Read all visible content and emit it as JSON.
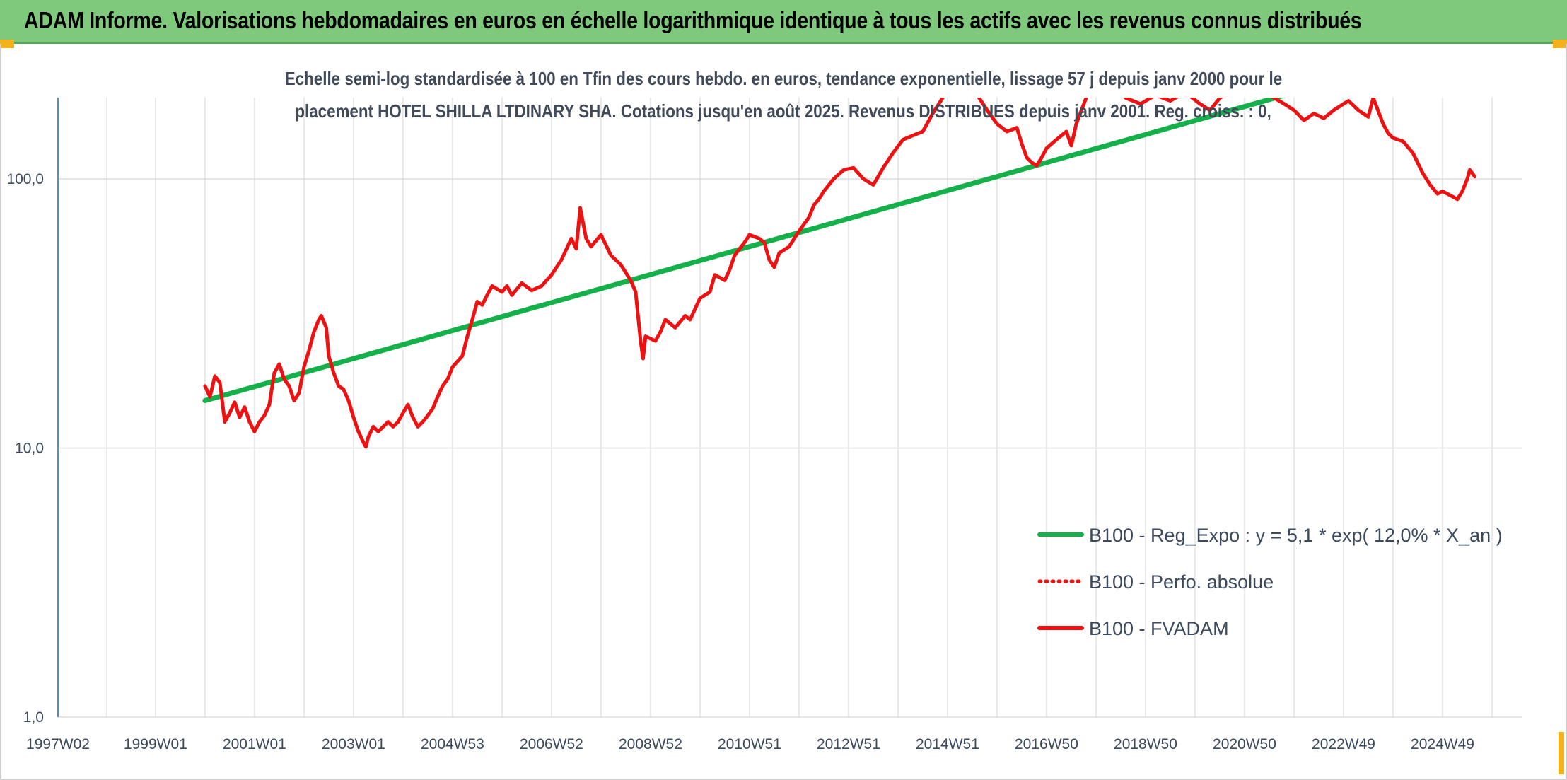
{
  "header": {
    "title": "ADAM Informe. Valorisations hebdomadaires en euros en échelle logarithmique identique à tous les actifs avec les revenus connus distribués"
  },
  "chart_data": {
    "type": "line",
    "title_line1": "Echelle semi-log standardisée à 100 en Tfin des cours hebdo. en euros, tendance exponentielle, lissage 57 j depuis janv 2000 pour le",
    "title_line2": "placement HOTEL SHILLA LTDINARY SHA. Cotations jusqu'en août 2025. Revenus DISTRIBUES depuis janv 2001. Reg. croiss. : 0,",
    "y_scale": "log",
    "ylim": [
      1,
      200
    ],
    "y_ticks": [
      {
        "value": 100,
        "label": "100,0"
      },
      {
        "value": 10,
        "label": "10,0"
      },
      {
        "value": 1,
        "label": "1,0"
      }
    ],
    "x_range": [
      1997.03,
      2026.6
    ],
    "x_ticks": [
      {
        "value": 1997.03,
        "label": "1997W02"
      },
      {
        "value": 1999.0,
        "label": "1999W01"
      },
      {
        "value": 2001.0,
        "label": "2001W01"
      },
      {
        "value": 2003.0,
        "label": "2003W01"
      },
      {
        "value": 2005.0,
        "label": "2004W53"
      },
      {
        "value": 2007.0,
        "label": "2006W52"
      },
      {
        "value": 2009.0,
        "label": "2008W52"
      },
      {
        "value": 2011.0,
        "label": "2010W51"
      },
      {
        "value": 2013.0,
        "label": "2012W51"
      },
      {
        "value": 2015.0,
        "label": "2014W51"
      },
      {
        "value": 2017.0,
        "label": "2016W50"
      },
      {
        "value": 2019.0,
        "label": "2018W50"
      },
      {
        "value": 2021.0,
        "label": "2020W50"
      },
      {
        "value": 2023.0,
        "label": "2022W49"
      },
      {
        "value": 2025.0,
        "label": "2024W49"
      }
    ],
    "grid": true,
    "legend_position": "bottom-right",
    "series": [
      {
        "name": "B100 - Reg_Expo : y = 5,1 * exp( 12,0% *  X_an )",
        "color": "#14b04a",
        "style": "solid",
        "points": [
          [
            2000.0,
            15.0
          ],
          [
            2025.0,
            300.0
          ]
        ]
      },
      {
        "name": "B100 - Perfo. absolue",
        "color": "#ee1111",
        "style": "dotted",
        "points": []
      },
      {
        "name": "B100 - FVADAM",
        "color": "#ee1111",
        "style": "solid",
        "points": [
          [
            2000.0,
            17.0
          ],
          [
            2000.1,
            15.5
          ],
          [
            2000.2,
            18.5
          ],
          [
            2000.3,
            17.5
          ],
          [
            2000.4,
            12.5
          ],
          [
            2000.5,
            13.5
          ],
          [
            2000.6,
            14.8
          ],
          [
            2000.7,
            13.0
          ],
          [
            2000.8,
            14.2
          ],
          [
            2000.9,
            12.5
          ],
          [
            2001.0,
            11.5
          ],
          [
            2001.1,
            12.5
          ],
          [
            2001.2,
            13.2
          ],
          [
            2001.3,
            14.5
          ],
          [
            2001.4,
            19.0
          ],
          [
            2001.5,
            20.5
          ],
          [
            2001.6,
            18.0
          ],
          [
            2001.7,
            17.0
          ],
          [
            2001.8,
            15.0
          ],
          [
            2001.9,
            16.0
          ],
          [
            2002.0,
            20.0
          ],
          [
            2002.1,
            23.0
          ],
          [
            2002.2,
            27.0
          ],
          [
            2002.3,
            30.0
          ],
          [
            2002.35,
            31.0
          ],
          [
            2002.45,
            28.0
          ],
          [
            2002.5,
            22.0
          ],
          [
            2002.6,
            19.0
          ],
          [
            2002.7,
            17.0
          ],
          [
            2002.8,
            16.5
          ],
          [
            2002.9,
            15.0
          ],
          [
            2003.0,
            13.0
          ],
          [
            2003.1,
            11.5
          ],
          [
            2003.2,
            10.5
          ],
          [
            2003.25,
            10.1
          ],
          [
            2003.3,
            11.0
          ],
          [
            2003.4,
            12.0
          ],
          [
            2003.5,
            11.5
          ],
          [
            2003.6,
            12.0
          ],
          [
            2003.7,
            12.5
          ],
          [
            2003.8,
            12.0
          ],
          [
            2003.9,
            12.5
          ],
          [
            2004.0,
            13.5
          ],
          [
            2004.1,
            14.5
          ],
          [
            2004.2,
            13.0
          ],
          [
            2004.3,
            12.0
          ],
          [
            2004.4,
            12.5
          ],
          [
            2004.5,
            13.2
          ],
          [
            2004.6,
            14.0
          ],
          [
            2004.7,
            15.5
          ],
          [
            2004.8,
            17.0
          ],
          [
            2004.9,
            18.0
          ],
          [
            2005.0,
            20.0
          ],
          [
            2005.2,
            22.0
          ],
          [
            2005.3,
            26.0
          ],
          [
            2005.4,
            30.0
          ],
          [
            2005.5,
            35.0
          ],
          [
            2005.6,
            34.0
          ],
          [
            2005.7,
            37.0
          ],
          [
            2005.8,
            40.0
          ],
          [
            2006.0,
            38.0
          ],
          [
            2006.1,
            40.0
          ],
          [
            2006.2,
            37.0
          ],
          [
            2006.4,
            41.0
          ],
          [
            2006.6,
            38.5
          ],
          [
            2006.8,
            40.0
          ],
          [
            2007.0,
            44.0
          ],
          [
            2007.2,
            50.0
          ],
          [
            2007.4,
            60.0
          ],
          [
            2007.5,
            55.0
          ],
          [
            2007.58,
            78.0
          ],
          [
            2007.7,
            60.0
          ],
          [
            2007.8,
            56.0
          ],
          [
            2008.0,
            62.0
          ],
          [
            2008.2,
            52.0
          ],
          [
            2008.4,
            48.0
          ],
          [
            2008.6,
            42.0
          ],
          [
            2008.7,
            38.0
          ],
          [
            2008.8,
            25.0
          ],
          [
            2008.85,
            21.5
          ],
          [
            2008.9,
            26.0
          ],
          [
            2009.1,
            25.0
          ],
          [
            2009.2,
            27.0
          ],
          [
            2009.3,
            30.0
          ],
          [
            2009.5,
            28.0
          ],
          [
            2009.7,
            31.0
          ],
          [
            2009.8,
            30.0
          ],
          [
            2010.0,
            36.0
          ],
          [
            2010.2,
            38.0
          ],
          [
            2010.3,
            44.0
          ],
          [
            2010.5,
            42.0
          ],
          [
            2010.6,
            46.0
          ],
          [
            2010.7,
            52.0
          ],
          [
            2010.8,
            55.0
          ],
          [
            2010.9,
            58.0
          ],
          [
            2011.0,
            62.0
          ],
          [
            2011.2,
            60.0
          ],
          [
            2011.3,
            58.0
          ],
          [
            2011.4,
            50.0
          ],
          [
            2011.5,
            47.0
          ],
          [
            2011.6,
            53.0
          ],
          [
            2011.8,
            56.0
          ],
          [
            2012.0,
            64.0
          ],
          [
            2012.2,
            72.0
          ],
          [
            2012.3,
            80.0
          ],
          [
            2012.4,
            84.0
          ],
          [
            2012.5,
            90.0
          ],
          [
            2012.7,
            100.0
          ],
          [
            2012.9,
            108.0
          ],
          [
            2013.1,
            110.0
          ],
          [
            2013.3,
            100.0
          ],
          [
            2013.5,
            95.0
          ],
          [
            2013.7,
            110.0
          ],
          [
            2013.9,
            125.0
          ],
          [
            2014.1,
            140.0
          ],
          [
            2014.3,
            145.0
          ],
          [
            2014.5,
            150.0
          ],
          [
            2014.7,
            175.0
          ],
          [
            2014.9,
            200.0
          ],
          [
            2015.0,
            220.0
          ],
          [
            2015.2,
            250.0
          ],
          [
            2015.4,
            230.0
          ],
          [
            2015.6,
            205.0
          ],
          [
            2015.8,
            180.0
          ],
          [
            2016.0,
            160.0
          ],
          [
            2016.2,
            150.0
          ],
          [
            2016.4,
            155.0
          ],
          [
            2016.5,
            135.0
          ],
          [
            2016.6,
            120.0
          ],
          [
            2016.7,
            115.0
          ],
          [
            2016.8,
            112.0
          ],
          [
            2016.9,
            120.0
          ],
          [
            2017.0,
            130.0
          ],
          [
            2017.2,
            140.0
          ],
          [
            2017.4,
            150.0
          ],
          [
            2017.5,
            133.0
          ],
          [
            2017.6,
            160.0
          ],
          [
            2017.8,
            200.0
          ],
          [
            2018.0,
            250.0
          ],
          [
            2018.3,
            230.0
          ],
          [
            2018.6,
            200.0
          ],
          [
            2018.9,
            190.0
          ],
          [
            2019.2,
            205.0
          ],
          [
            2019.5,
            195.0
          ],
          [
            2019.8,
            210.0
          ],
          [
            2020.1,
            190.0
          ],
          [
            2020.3,
            180.0
          ],
          [
            2020.5,
            200.0
          ],
          [
            2020.8,
            215.0
          ],
          [
            2021.1,
            205.0
          ],
          [
            2021.4,
            210.0
          ],
          [
            2021.6,
            200.0
          ],
          [
            2021.8,
            190.0
          ],
          [
            2022.0,
            180.0
          ],
          [
            2022.2,
            165.0
          ],
          [
            2022.4,
            175.0
          ],
          [
            2022.6,
            168.0
          ],
          [
            2022.8,
            180.0
          ],
          [
            2023.0,
            190.0
          ],
          [
            2023.1,
            195.0
          ],
          [
            2023.3,
            180.0
          ],
          [
            2023.5,
            170.0
          ],
          [
            2023.6,
            200.0
          ],
          [
            2023.8,
            160.0
          ],
          [
            2023.9,
            148.0
          ],
          [
            2024.0,
            142.0
          ],
          [
            2024.2,
            138.0
          ],
          [
            2024.4,
            125.0
          ],
          [
            2024.6,
            105.0
          ],
          [
            2024.75,
            95.0
          ],
          [
            2024.9,
            88.0
          ],
          [
            2025.0,
            90.0
          ],
          [
            2025.2,
            86.0
          ],
          [
            2025.3,
            84.0
          ],
          [
            2025.4,
            90.0
          ],
          [
            2025.5,
            100.0
          ],
          [
            2025.55,
            108.0
          ],
          [
            2025.6,
            105.0
          ],
          [
            2025.65,
            102.0
          ]
        ]
      }
    ]
  }
}
